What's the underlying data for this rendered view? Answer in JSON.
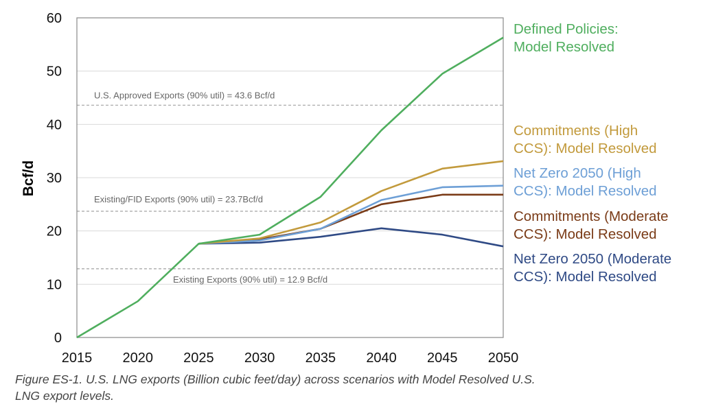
{
  "chart_data": {
    "type": "line",
    "x": [
      2015,
      2020,
      2025,
      2030,
      2035,
      2040,
      2045,
      2050
    ],
    "xlim": [
      2015,
      2050
    ],
    "ylim": [
      0,
      60
    ],
    "yticks": [
      0,
      10,
      20,
      30,
      40,
      50,
      60
    ],
    "ylabel": "Bcf/d",
    "xlabel": "",
    "grid": "horizontal",
    "legend": "right",
    "series": [
      {
        "name": "Defined Policies: Model Resolved",
        "label_lines": [
          "Defined Policies:",
          "Model Resolved"
        ],
        "color": "#4fae5e",
        "values": [
          0,
          6.8,
          17.6,
          19.3,
          26.4,
          38.9,
          49.5,
          56.3
        ]
      },
      {
        "name": "Commitments (High CCS): Model Resolved",
        "label_lines": [
          "Commitments (High",
          "CCS): Model Resolved"
        ],
        "color": "#c29a3c",
        "values": [
          null,
          null,
          17.6,
          18.6,
          21.6,
          27.5,
          31.7,
          33.1
        ]
      },
      {
        "name": "Net Zero 2050 (High CCS): Model Resolved",
        "label_lines": [
          "Net Zero 2050 (High",
          "CCS): Model Resolved"
        ],
        "color": "#6d9fd6",
        "values": [
          null,
          null,
          17.6,
          18.2,
          20.4,
          25.8,
          28.2,
          28.5
        ]
      },
      {
        "name": "Commitments (Moderate CCS): Model Resolved",
        "label_lines": [
          "Commitments (Moderate",
          "CCS): Model Resolved"
        ],
        "color": "#7a3b17",
        "values": [
          null,
          null,
          17.6,
          18.4,
          20.4,
          25.0,
          26.8,
          26.8
        ]
      },
      {
        "name": "Net Zero 2050 (Moderate CCS): Model Resolved",
        "label_lines": [
          "Net Zero 2050 (Moderate",
          "CCS): Model Resolved"
        ],
        "color": "#2f4a85",
        "values": [
          null,
          null,
          17.6,
          17.8,
          18.9,
          20.5,
          19.3,
          17.1
        ]
      }
    ],
    "reference_lines": [
      {
        "value": 43.6,
        "label": "U.S. Approved Exports (90% util) = 43.6 Bcf/d"
      },
      {
        "value": 23.7,
        "label": "Existing/FID Exports (90% util) = 23.7Bcf/d"
      },
      {
        "value": 12.9,
        "label": "Existing Exports (90% util) = 12.9 Bcf/d"
      }
    ]
  },
  "caption": {
    "line1": "Figure ES-1. U.S. LNG exports (Billion cubic feet/day) across scenarios with Model Resolved U.S.",
    "line2": "LNG export levels."
  }
}
